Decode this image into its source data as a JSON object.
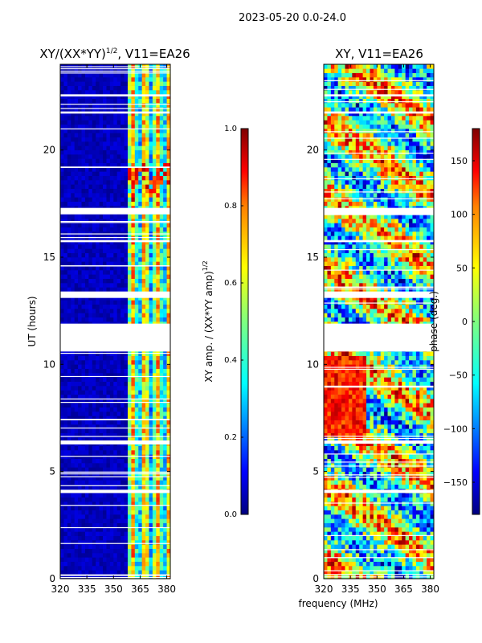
{
  "figure": {
    "suptitle": "2023-05-20 0.0-24.0",
    "xlabel": "frequency (MHz)",
    "ylabel": "UT (hours)"
  },
  "colors": {
    "jet": [
      "#00007f",
      "#0000ff",
      "#007fff",
      "#00ffff",
      "#7fff7f",
      "#ffff00",
      "#ff7f00",
      "#ff0000",
      "#7f0000"
    ],
    "gap": "#ffffff"
  },
  "chart_data": [
    {
      "type": "heatmap",
      "id": "amp",
      "title_main": "XY/(XX*YY)",
      "title_sup": "1/2",
      "title_tail": ", V11=EA26",
      "xlim": [
        320,
        382
      ],
      "ylim": [
        0,
        24
      ],
      "xticks": [
        320,
        335,
        350,
        365,
        380
      ],
      "yticks": [
        0,
        5,
        10,
        15,
        20
      ],
      "zlim": [
        0.0,
        1.0
      ],
      "colorbar_ticks": [
        "0.0",
        "0.2",
        "0.4",
        "0.6",
        "0.8",
        "1.0"
      ],
      "colorbar_label_main": "XY amp. / (XX*YY amp)",
      "colorbar_label_sup": "1/2",
      "description_values": "low amplitude (~0.05) below 359 MHz, 0.2-0.9 in bands 359-382 MHz",
      "white_gaps_hours": [
        [
          10.6,
          11.9
        ],
        [
          13.1,
          13.4
        ],
        [
          17.0,
          17.3
        ],
        [
          6.3,
          6.45
        ],
        [
          4.0,
          4.15
        ],
        [
          21.7,
          21.8
        ],
        [
          15.7,
          15.8
        ],
        [
          22.5,
          22.6
        ]
      ]
    },
    {
      "type": "heatmap",
      "id": "phase",
      "title_main": "XY, V11=EA26",
      "xlim": [
        320,
        382
      ],
      "ylim": [
        0,
        24
      ],
      "xticks": [
        320,
        335,
        350,
        365,
        380
      ],
      "yticks": [
        0,
        5,
        10,
        15,
        20
      ],
      "zlim": [
        -180,
        180
      ],
      "colorbar_ticks": [
        "−150",
        "−100",
        "−50",
        "0",
        "50",
        "100",
        "150"
      ],
      "colorbar_tick_values": [
        -150,
        -100,
        -50,
        0,
        50,
        100,
        150
      ],
      "colorbar_label": "phase (deg.)",
      "white_gaps_hours": [
        [
          10.6,
          11.9
        ],
        [
          13.1,
          13.4
        ],
        [
          17.0,
          17.3
        ],
        [
          6.3,
          6.45
        ],
        [
          4.0,
          4.15
        ],
        [
          21.7,
          21.8
        ],
        [
          15.7,
          15.8
        ],
        [
          22.5,
          22.6
        ]
      ]
    }
  ]
}
